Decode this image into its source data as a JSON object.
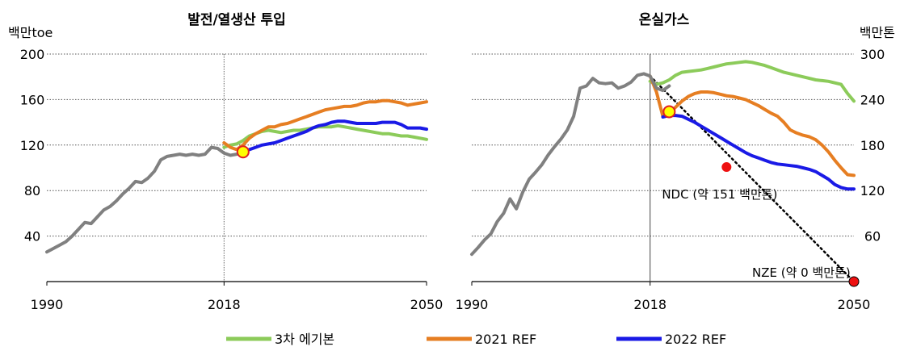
{
  "colors": {
    "plan3": "#8CCB5A",
    "ref2021": "#E67E22",
    "ref2022": "#1A1AE6",
    "history": "#808080",
    "marker_fill": "#FFFF00",
    "marker_stroke": "#E02020",
    "target_dot": "#EE1111"
  },
  "legend": [
    {
      "key": "plan3",
      "label": "3차 에기본"
    },
    {
      "key": "ref2021",
      "label": "2021 REF"
    },
    {
      "key": "ref2022",
      "label": "2022 REF"
    }
  ],
  "chart_data": [
    {
      "type": "line",
      "title": "발전/열생산 투입",
      "ylabel": "백만toe",
      "xlim": [
        1990,
        2050
      ],
      "ylim": [
        0,
        200
      ],
      "xticks": [
        "1990",
        "2018",
        "2050"
      ],
      "yticks": [
        "40",
        "80",
        "120",
        "160",
        "200"
      ],
      "ytick_values": [
        40,
        80,
        120,
        160,
        200
      ],
      "grid": "horizontal-dotted",
      "ref_line_x": 2018,
      "marker": {
        "x": 2021,
        "y": 114
      },
      "series": [
        {
          "key": "history",
          "x": [
            1990,
            1991,
            1992,
            1993,
            1994,
            1995,
            1996,
            1997,
            1998,
            1999,
            2000,
            2001,
            2002,
            2003,
            2004,
            2005,
            2006,
            2007,
            2008,
            2009,
            2010,
            2011,
            2012,
            2013,
            2014,
            2015,
            2016,
            2017,
            2018,
            2019,
            2020,
            2021
          ],
          "y": [
            26,
            29,
            32,
            35,
            40,
            46,
            52,
            51,
            57,
            63,
            66,
            71,
            77,
            82,
            88,
            87,
            91,
            97,
            107,
            110,
            111,
            112,
            111,
            112,
            111,
            112,
            118,
            117,
            113,
            111,
            112,
            115
          ]
        },
        {
          "key": "plan3",
          "x": [
            2018,
            2019,
            2020,
            2021,
            2022,
            2023,
            2024,
            2025,
            2026,
            2027,
            2028,
            2029,
            2030,
            2031,
            2032,
            2033,
            2034,
            2035,
            2036,
            2037,
            2038,
            2039,
            2040,
            2041,
            2042,
            2043,
            2044,
            2045,
            2046,
            2047,
            2048,
            2049,
            2050
          ],
          "y": [
            118,
            120,
            121,
            124,
            128,
            130,
            132,
            133,
            132,
            131,
            132,
            133,
            133,
            134,
            135,
            136,
            136,
            136,
            137,
            136,
            135,
            134,
            133,
            132,
            131,
            130,
            130,
            129,
            128,
            128,
            127,
            126,
            125
          ]
        },
        {
          "key": "ref2021",
          "x": [
            2018,
            2019,
            2020,
            2021,
            2022,
            2023,
            2024,
            2025,
            2026,
            2027,
            2028,
            2029,
            2030,
            2031,
            2032,
            2033,
            2034,
            2035,
            2036,
            2037,
            2038,
            2039,
            2040,
            2041,
            2042,
            2043,
            2044,
            2045,
            2046,
            2047,
            2048,
            2049,
            2050
          ],
          "y": [
            122,
            118,
            116,
            120,
            126,
            130,
            133,
            136,
            136,
            138,
            139,
            141,
            143,
            145,
            147,
            149,
            151,
            152,
            153,
            154,
            154,
            155,
            157,
            158,
            158,
            159,
            159,
            158,
            157,
            155,
            156,
            157,
            158
          ]
        },
        {
          "key": "ref2022",
          "x": [
            2021,
            2022,
            2023,
            2024,
            2025,
            2026,
            2027,
            2028,
            2029,
            2030,
            2031,
            2032,
            2033,
            2034,
            2035,
            2036,
            2037,
            2038,
            2039,
            2040,
            2041,
            2042,
            2043,
            2044,
            2045,
            2046,
            2047,
            2048,
            2049,
            2050
          ],
          "y": [
            114,
            116,
            118,
            120,
            121,
            122,
            124,
            126,
            128,
            130,
            132,
            135,
            137,
            138,
            140,
            141,
            141,
            140,
            139,
            139,
            139,
            139,
            140,
            140,
            140,
            138,
            135,
            135,
            135,
            134
          ]
        }
      ]
    },
    {
      "type": "line",
      "title": "온실가스",
      "ylabel": "백만톤",
      "xlim": [
        1990,
        2050
      ],
      "ylim": [
        0,
        300
      ],
      "xticks": [
        "1990",
        "2018",
        "2050"
      ],
      "yticks": [
        "60",
        "120",
        "180",
        "240",
        "300"
      ],
      "ytick_values": [
        60,
        120,
        180,
        240,
        300
      ],
      "grid": "horizontal-dotted",
      "ref_line_x": 2018,
      "marker": {
        "x": 2021,
        "y": 224
      },
      "trend": {
        "from": {
          "x": 2018,
          "y": 271
        },
        "to": {
          "x": 2050,
          "y": 0
        }
      },
      "targets": [
        {
          "x": 2030,
          "y": 151,
          "label": "NDC (약 151 백만톤)"
        },
        {
          "x": 2050,
          "y": 0,
          "label": "NZE (약 0 백만톤)"
        }
      ],
      "series": [
        {
          "key": "history",
          "x": [
            1990,
            1991,
            1992,
            1993,
            1994,
            1995,
            1996,
            1997,
            1998,
            1999,
            2000,
            2001,
            2002,
            2003,
            2004,
            2005,
            2006,
            2007,
            2008,
            2009,
            2010,
            2011,
            2012,
            2013,
            2014,
            2015,
            2016,
            2017,
            2018,
            2019,
            2020,
            2021
          ],
          "y": [
            36,
            45,
            55,
            63,
            79,
            90,
            109,
            96,
            118,
            135,
            144,
            154,
            167,
            178,
            188,
            200,
            218,
            255,
            258,
            268,
            262,
            261,
            262,
            255,
            258,
            263,
            272,
            274,
            271,
            255,
            252,
            258
          ]
        },
        {
          "key": "plan3",
          "x": [
            2018,
            2019,
            2020,
            2021,
            2022,
            2023,
            2024,
            2025,
            2026,
            2027,
            2028,
            2029,
            2030,
            2031,
            2032,
            2033,
            2034,
            2035,
            2036,
            2037,
            2038,
            2039,
            2040,
            2041,
            2042,
            2043,
            2044,
            2045,
            2046,
            2047,
            2048,
            2049,
            2050
          ],
          "y": [
            264,
            260,
            262,
            266,
            272,
            276,
            277,
            278,
            279,
            281,
            283,
            285,
            287,
            288,
            289,
            290,
            289,
            287,
            285,
            282,
            279,
            276,
            274,
            272,
            270,
            268,
            266,
            265,
            264,
            262,
            260,
            248,
            238
          ]
        },
        {
          "key": "ref2021",
          "x": [
            2018,
            2019,
            2020,
            2021,
            2022,
            2023,
            2024,
            2025,
            2026,
            2027,
            2028,
            2029,
            2030,
            2031,
            2032,
            2033,
            2034,
            2035,
            2036,
            2037,
            2038,
            2039,
            2040,
            2041,
            2042,
            2043,
            2044,
            2045,
            2046,
            2047,
            2048,
            2049,
            2050
          ],
          "y": [
            271,
            250,
            218,
            222,
            230,
            238,
            244,
            248,
            250,
            250,
            249,
            247,
            245,
            244,
            242,
            240,
            236,
            232,
            227,
            222,
            218,
            210,
            200,
            196,
            193,
            191,
            187,
            180,
            171,
            160,
            150,
            141,
            140
          ]
        },
        {
          "key": "ref2022",
          "x": [
            2020,
            2021,
            2022,
            2023,
            2024,
            2025,
            2026,
            2027,
            2028,
            2029,
            2030,
            2031,
            2032,
            2033,
            2034,
            2035,
            2036,
            2037,
            2038,
            2039,
            2040,
            2041,
            2042,
            2043,
            2044,
            2045,
            2046,
            2047,
            2048,
            2049,
            2050
          ],
          "y": [
            217,
            219,
            219,
            218,
            214,
            210,
            205,
            200,
            195,
            190,
            185,
            180,
            175,
            170,
            166,
            163,
            160,
            157,
            155,
            154,
            153,
            152,
            150,
            148,
            145,
            140,
            135,
            128,
            124,
            122,
            122
          ]
        }
      ]
    }
  ]
}
